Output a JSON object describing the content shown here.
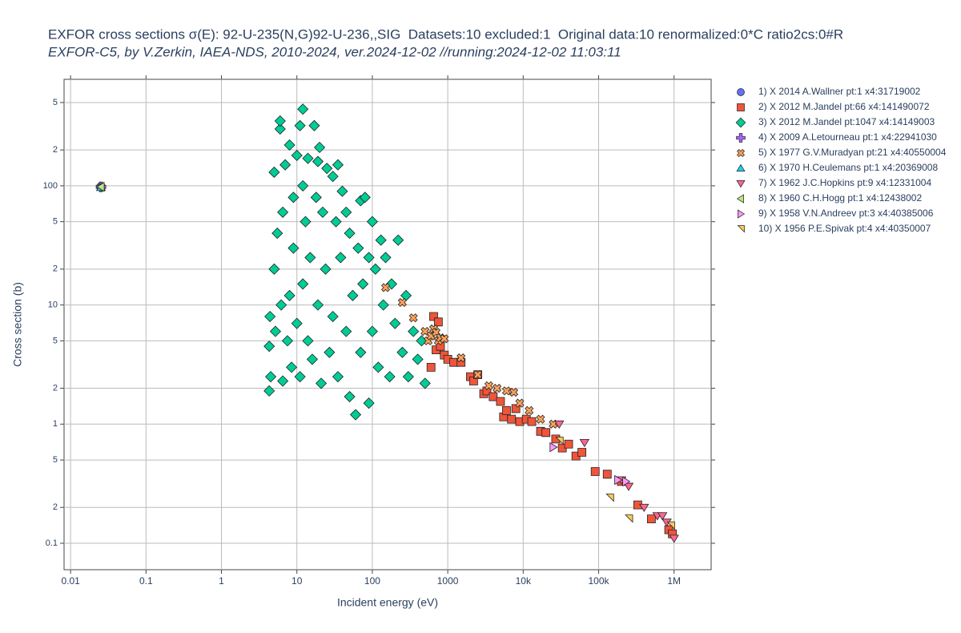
{
  "chart_data": {
    "type": "scatter",
    "title": "EXFOR cross sections σ(E): 92-U-235(N,G)92-U-236,,SIG  Datasets:10 excluded:1  Original data:10 renormalized:0*C ratio2cs:0#R",
    "subtitle": "EXFOR-C5, by V.Zerkin, IAEA-NDS, 2010-2024, ver.2024-12-02 //running:2024-12-02 11:03:11",
    "x_label": "Incident energy (eV)",
    "y_label": "Cross section (b)",
    "x_log": true,
    "y_log": true,
    "grid": true,
    "legend": "right",
    "xlim": [
      0.0082,
      3100000
    ],
    "ylim": [
      0.06,
      783
    ],
    "xticks": [
      0.01,
      0.1,
      1,
      10,
      100,
      1000,
      {
        "value": 10000,
        "label": "10k"
      },
      {
        "value": 100000,
        "label": "100k"
      },
      {
        "value": 1000000,
        "label": "1M"
      }
    ],
    "yticks": [
      {
        "value": 500,
        "label": "5"
      },
      {
        "value": 200,
        "label": "2"
      },
      100,
      {
        "value": 50,
        "label": "5"
      },
      {
        "value": 20,
        "label": "2"
      },
      10,
      5,
      2,
      1,
      {
        "value": 0.5,
        "label": "5"
      },
      {
        "value": 0.2,
        "label": "2"
      },
      0.1
    ],
    "series": [
      {
        "name": "1) X 2014 A.Wallner pt:1 x4:31719002",
        "color": "#636efa",
        "symbol": "circle",
        "x": [
          0.0253
        ],
        "values": [
          98.7
        ]
      },
      {
        "name": "2) X 2012 M.Jandel pt:66 x4:141490072",
        "color": "#ef553b",
        "symbol": "square",
        "x": [
          650,
          750,
          600,
          700,
          800,
          900,
          1000,
          1200,
          1500,
          2000,
          2200,
          2500,
          3000,
          3300,
          4000,
          5000,
          5500,
          6000,
          7000,
          8000,
          9000,
          11000,
          13000,
          17000,
          20000,
          27000,
          33000,
          40000,
          50000,
          60000,
          90000,
          130000,
          200000,
          330000,
          500000,
          850000,
          950000
        ],
        "values": [
          8,
          7.2,
          3.0,
          4.2,
          4.5,
          3.8,
          3.5,
          3.3,
          3.3,
          2.5,
          2.3,
          2.6,
          1.8,
          1.9,
          1.7,
          1.55,
          1.15,
          1.3,
          1.1,
          1.35,
          1.05,
          1.1,
          1.05,
          0.87,
          0.85,
          0.75,
          0.63,
          0.68,
          0.54,
          0.58,
          0.4,
          0.38,
          0.33,
          0.21,
          0.16,
          0.13,
          0.12
        ]
      },
      {
        "name": "3) X 2012 M.Jandel pt:1047 x4:14149003",
        "color": "#00cc96",
        "symbol": "diamond",
        "x": [
          4.3,
          4.3,
          4.4,
          4.5,
          5,
          5,
          5.2,
          5.5,
          6,
          6,
          6.2,
          6.5,
          6.5,
          7,
          7.5,
          8,
          8,
          8.5,
          9,
          9,
          10,
          10,
          11,
          11,
          12,
          12,
          12,
          13,
          14,
          14,
          15,
          16,
          17,
          18,
          19,
          19,
          20,
          21,
          22,
          24,
          25,
          27,
          30,
          30,
          33,
          35,
          35,
          38,
          40,
          45,
          45,
          50,
          50,
          55,
          60,
          65,
          70,
          70,
          75,
          80,
          90,
          90,
          100,
          100,
          110,
          120,
          130,
          140,
          150,
          170,
          180,
          200,
          220,
          250,
          280,
          300,
          350,
          400,
          450,
          500
        ],
        "values": [
          1.9,
          4.5,
          8,
          2.5,
          130,
          20,
          6,
          40,
          300,
          350,
          10,
          2.3,
          60,
          150,
          5,
          220,
          12,
          3,
          80,
          30,
          180,
          7,
          320,
          2.5,
          440,
          100,
          15,
          50,
          170,
          5,
          25,
          3.5,
          320,
          80,
          160,
          10,
          210,
          2.2,
          60,
          20,
          140,
          4,
          120,
          8,
          50,
          150,
          2.5,
          25,
          90,
          60,
          6,
          40,
          1.7,
          12,
          1.2,
          30,
          75,
          4,
          15,
          80,
          25,
          1.5,
          50,
          6,
          20,
          3,
          35,
          10,
          25,
          2.5,
          15,
          7,
          35,
          4,
          12,
          2.5,
          6,
          3.5,
          5,
          2.2
        ]
      },
      {
        "name": "4) X 2009 A.Letourneau pt:1 x4:22941030",
        "color": "#ab63fa",
        "symbol": "cross",
        "x": [
          0.0253
        ],
        "values": [
          98
        ]
      },
      {
        "name": "5) X 1977 G.V.Muradyan pt:21 x4:40550004",
        "color": "#ffa15a",
        "symbol": "x",
        "x": [
          150,
          250,
          350,
          500,
          550,
          600,
          650,
          700,
          750,
          800,
          900,
          1500,
          2500,
          3500,
          4500,
          6000,
          7500,
          9000,
          12000,
          17000,
          25000
        ],
        "values": [
          14,
          10.5,
          7.8,
          6,
          5.0,
          5.5,
          6.3,
          5.9,
          5.0,
          5.3,
          5.2,
          3.6,
          2.6,
          2.1,
          2.0,
          1.9,
          1.85,
          1.5,
          1.3,
          1.1,
          1.0
        ]
      },
      {
        "name": "6) X 1970 H.Ceulemans pt:1 x4:20369008",
        "color": "#19d3f3",
        "symbol": "triangle-up",
        "x": [
          0.0253
        ],
        "values": [
          97
        ]
      },
      {
        "name": "7) X 1962 J.C.Hopkins pt:9 x4:12331004",
        "color": "#ff6692",
        "symbol": "triangle-down",
        "x": [
          30000,
          65000,
          200000,
          250000,
          400000,
          600000,
          700000,
          800000,
          1000000
        ],
        "values": [
          1.0,
          0.7,
          0.34,
          0.3,
          0.2,
          0.17,
          0.17,
          0.15,
          0.11
        ]
      },
      {
        "name": "8) X 1960 C.H.Hogg pt:1 x4:12438002",
        "color": "#b6e880",
        "symbol": "triangle-left",
        "x": [
          0.0253
        ],
        "values": [
          98
        ]
      },
      {
        "name": "9) X 1958 V.N.Andreev pt:3 x4:40385006",
        "color": "#ff97ff",
        "symbol": "triangle-right",
        "x": [
          25000,
          180000,
          230000
        ],
        "values": [
          0.64,
          0.34,
          0.33
        ]
      },
      {
        "name": "10) X 1956 P.E.Spivak pt:4 x4:40350007",
        "color": "#fecb52",
        "symbol": "triangle-ne",
        "x": [
          30000,
          140000,
          250000,
          900000
        ],
        "values": [
          0.72,
          0.24,
          0.16,
          0.14
        ]
      }
    ]
  }
}
